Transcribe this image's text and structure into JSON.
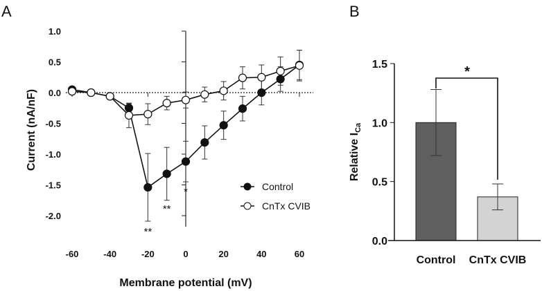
{
  "chart_data": [
    {
      "panel": "A",
      "type": "line",
      "xlabel": "Membrane potential (mV)",
      "ylabel": "Current (nA/nF)",
      "xlim": [
        -60,
        60
      ],
      "ylim": [
        -2.0,
        1.0
      ],
      "xticks": [
        "-60",
        "-40",
        "-20",
        "0",
        "20",
        "40",
        "60"
      ],
      "yticks": [
        "1.0",
        "0.5",
        "0.0",
        "-0.5",
        "-1.0",
        "-1.5",
        "-2.0"
      ],
      "legend_position": "bottom-right",
      "x": [
        -60,
        -50,
        -40,
        -30,
        -20,
        -10,
        0,
        10,
        20,
        30,
        40,
        50,
        60
      ],
      "series": [
        {
          "name": "Control",
          "marker": "filled-circle",
          "values": [
            0.05,
            0,
            -0.06,
            -0.25,
            -1.54,
            -1.32,
            -1.12,
            -0.81,
            -0.53,
            -0.26,
            0,
            0.22,
            0.45
          ],
          "errors": [
            0.02,
            0.02,
            0.03,
            0.07,
            0.55,
            0.43,
            0.33,
            0.27,
            0.23,
            0.2,
            0.2,
            0.2,
            0.24
          ]
        },
        {
          "name": "CnTx CVIB",
          "marker": "open-circle",
          "values": [
            0.02,
            0,
            -0.06,
            -0.37,
            -0.35,
            -0.17,
            -0.12,
            -0.03,
            0.03,
            0.24,
            0.25,
            0.35,
            0.44
          ],
          "errors": [
            0.02,
            0.02,
            0.03,
            0.2,
            0.17,
            0.11,
            0.13,
            0.12,
            0.15,
            0.18,
            0.2,
            0.23,
            0.25
          ]
        }
      ],
      "annotations": [
        {
          "x": -20,
          "text": "**"
        },
        {
          "x": -10,
          "text": "**"
        },
        {
          "x": 0,
          "text": "*"
        }
      ]
    },
    {
      "panel": "B",
      "type": "bar",
      "categories": [
        "Control",
        "CnTx CVIB"
      ],
      "values": [
        1.0,
        0.37
      ],
      "errors": [
        0.28,
        0.11
      ],
      "colors": [
        "#5f5f5f",
        "#d3d3d3"
      ],
      "ylabel": "Relative I",
      "ylabel_sub": "Ca",
      "ylim": [
        0,
        1.5
      ],
      "yticks": [
        "0.0",
        "0.5",
        "1.0",
        "1.5"
      ],
      "significance": "*"
    }
  ]
}
